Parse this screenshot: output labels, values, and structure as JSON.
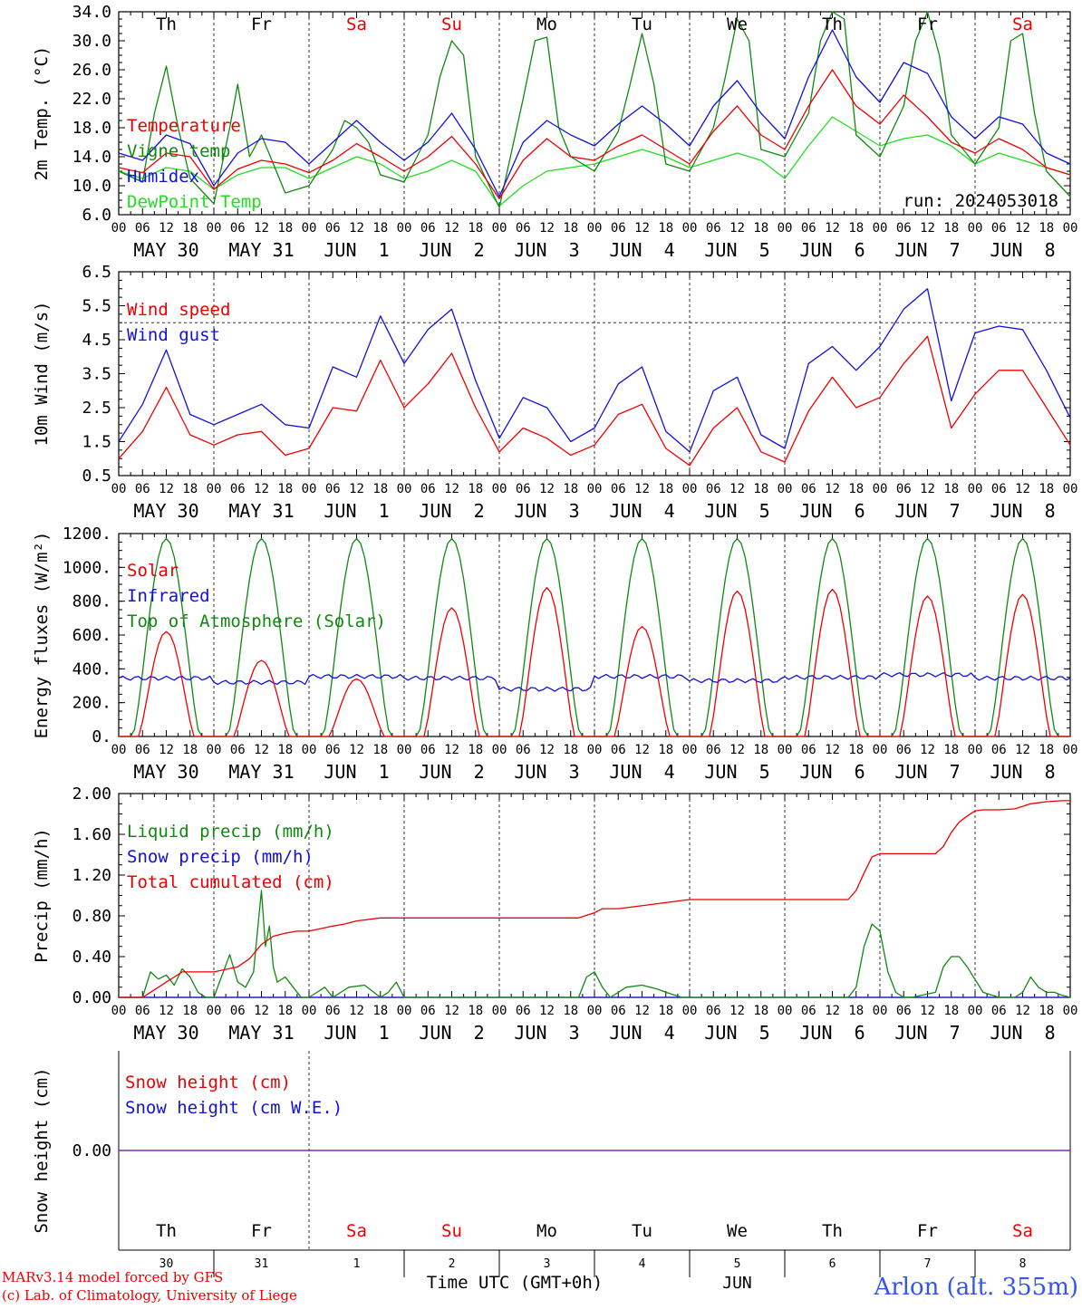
{
  "colors": {
    "red": "#ee0000",
    "green": "#118811",
    "blue": "#1111dd",
    "lightgreen": "#22dd22",
    "purple": "#7733aa",
    "axis": "#000000",
    "grid": "#333333"
  },
  "hour_labels": [
    "00",
    "06",
    "12",
    "18"
  ],
  "end_hour_label": "00",
  "date_labels": [
    "MAY 30",
    "MAY 31",
    "JUN  1",
    "JUN  2",
    "JUN  3",
    "JUN  4",
    "JUN  5",
    "JUN  6",
    "JUN  7",
    "JUN  8"
  ],
  "weekdays": [
    {
      "label": "Th",
      "weekend": false
    },
    {
      "label": "Fr",
      "weekend": false
    },
    {
      "label": "Sa",
      "weekend": true
    },
    {
      "label": "Su",
      "weekend": true
    },
    {
      "label": "Mo",
      "weekend": false
    },
    {
      "label": "Tu",
      "weekend": false
    },
    {
      "label": "We",
      "weekend": false
    },
    {
      "label": "Th",
      "weekend": false
    },
    {
      "label": "Fr",
      "weekend": false
    },
    {
      "label": "Sa",
      "weekend": true
    }
  ],
  "day_numbers": [
    "30",
    "31",
    "1",
    "2",
    "3",
    "4",
    "5",
    "6",
    "7",
    "8"
  ],
  "month_label": "JUN",
  "time_label": "Time UTC (GMT+0h)",
  "station_label": "Arlon (alt. 355m)",
  "credit_line1": "MARv3.14 model forced by GFS",
  "credit_line2": "(c) Lab. of Climatology, University of Liege",
  "chart_data": [
    {
      "id": "temperature",
      "type": "line",
      "ylabel": "2m Temp. (°C)",
      "ylim": [
        6,
        34
      ],
      "yticks": [
        "6.0",
        "10.0",
        "14.0",
        "18.0",
        "22.0",
        "26.0",
        "30.0",
        "34.0"
      ],
      "ytick_values": [
        6,
        10,
        14,
        18,
        22,
        26,
        30,
        34
      ],
      "x_unit": "hours since May 30 00 UTC",
      "annotation": "run: 2024053018",
      "series": [
        {
          "name": "Temperature",
          "color": "red",
          "x": [
            0,
            6,
            12,
            18,
            24,
            30,
            36,
            42,
            48,
            54,
            60,
            66,
            72,
            78,
            84,
            90,
            96,
            102,
            108,
            114,
            120,
            126,
            132,
            138,
            144,
            150,
            156,
            162,
            168,
            174,
            180,
            186,
            192,
            198,
            204,
            210,
            216,
            222,
            228,
            234,
            240
          ],
          "y": [
            12.5,
            11.8,
            14.5,
            14.0,
            9.5,
            12.3,
            13.5,
            13.0,
            11.8,
            13.5,
            15.8,
            14.0,
            12.0,
            14.0,
            16.8,
            13.0,
            8.2,
            13.5,
            16.5,
            14.0,
            13.5,
            15.5,
            17.0,
            15.0,
            13.0,
            17.5,
            21.0,
            17.0,
            15.0,
            21.0,
            26.0,
            21.0,
            18.5,
            22.5,
            19.5,
            16.0,
            14.5,
            16.5,
            15.0,
            12.5,
            11.5
          ]
        },
        {
          "name": "Vigne temp",
          "color": "green",
          "x": [
            0,
            6,
            9,
            12,
            15,
            18,
            24,
            28,
            30,
            33,
            36,
            42,
            48,
            54,
            57,
            60,
            63,
            66,
            72,
            78,
            81,
            84,
            87,
            90,
            96,
            102,
            105,
            108,
            111,
            114,
            120,
            126,
            129,
            132,
            135,
            138,
            144,
            150,
            153,
            156,
            159,
            162,
            168,
            174,
            177,
            180,
            183,
            186,
            192,
            198,
            201,
            204,
            207,
            210,
            216,
            222,
            225,
            228,
            231,
            234,
            240
          ],
          "y": [
            12.0,
            10.5,
            20.0,
            26.5,
            18.0,
            11.0,
            7.5,
            18.0,
            24.0,
            14.0,
            17.0,
            9.0,
            10.0,
            15.0,
            19.0,
            18.0,
            16.0,
            11.5,
            10.5,
            17.0,
            25.0,
            30.0,
            28.0,
            14.0,
            7.0,
            22.0,
            30.0,
            30.5,
            18.0,
            14.0,
            12.0,
            17.5,
            24.0,
            31.0,
            24.0,
            13.0,
            12.0,
            18.0,
            25.0,
            33.0,
            30.0,
            15.0,
            14.0,
            20.0,
            30.0,
            36.0,
            33.0,
            17.0,
            14.0,
            21.0,
            30.0,
            34.0,
            28.0,
            17.0,
            13.0,
            18.0,
            30.0,
            31.0,
            20.0,
            12.0,
            8.5
          ]
        },
        {
          "name": "Humidex",
          "color": "blue",
          "x": [
            0,
            6,
            12,
            18,
            24,
            30,
            36,
            42,
            48,
            54,
            60,
            66,
            72,
            78,
            84,
            90,
            96,
            102,
            108,
            114,
            120,
            126,
            132,
            138,
            144,
            150,
            156,
            162,
            168,
            174,
            180,
            186,
            192,
            198,
            204,
            210,
            216,
            222,
            228,
            234,
            240
          ],
          "y": [
            14.5,
            13.5,
            17.0,
            15.8,
            10.0,
            14.5,
            16.5,
            16.0,
            13.0,
            16.0,
            19.0,
            16.0,
            13.5,
            16.0,
            20.0,
            15.0,
            8.5,
            16.0,
            19.0,
            17.0,
            15.5,
            18.5,
            21.0,
            18.5,
            15.5,
            21.0,
            24.5,
            20.0,
            16.5,
            25.0,
            31.5,
            25.0,
            21.5,
            27.0,
            25.5,
            19.5,
            16.5,
            19.5,
            18.5,
            14.5,
            13.0
          ]
        },
        {
          "name": "DewPoint Temp",
          "color": "lightgreen",
          "x": [
            0,
            6,
            12,
            18,
            24,
            30,
            36,
            42,
            48,
            54,
            60,
            66,
            72,
            78,
            84,
            90,
            96,
            102,
            108,
            114,
            120,
            126,
            132,
            138,
            144,
            150,
            156,
            162,
            168,
            174,
            180,
            186,
            192,
            198,
            204,
            210,
            216,
            222,
            228,
            234,
            240
          ],
          "y": [
            12.0,
            11.0,
            12.5,
            12.0,
            9.5,
            11.5,
            12.5,
            12.5,
            11.0,
            12.5,
            14.0,
            13.0,
            11.0,
            12.0,
            13.5,
            12.0,
            7.2,
            10.0,
            12.0,
            12.5,
            13.0,
            14.0,
            15.0,
            14.0,
            12.5,
            13.5,
            14.5,
            13.5,
            11.0,
            15.5,
            19.5,
            17.5,
            15.5,
            16.5,
            17.0,
            15.5,
            13.0,
            14.5,
            13.5,
            12.5,
            11.5
          ]
        }
      ]
    },
    {
      "id": "wind",
      "type": "line",
      "ylabel": "10m Wind (m/s)",
      "ylim": [
        0.5,
        6.5
      ],
      "yticks": [
        "0.5",
        "1.5",
        "2.5",
        "3.5",
        "4.5",
        "5.5",
        "6.5"
      ],
      "ytick_values": [
        0.5,
        1.5,
        2.5,
        3.5,
        4.5,
        5.5,
        6.5
      ],
      "ref_line": 5.0,
      "series": [
        {
          "name": "Wind speed",
          "color": "red",
          "x": [
            0,
            6,
            12,
            18,
            24,
            30,
            36,
            42,
            48,
            54,
            60,
            66,
            72,
            78,
            84,
            90,
            96,
            102,
            108,
            114,
            120,
            126,
            132,
            138,
            144,
            150,
            156,
            162,
            168,
            174,
            180,
            186,
            192,
            198,
            204,
            210,
            216,
            222,
            228,
            234,
            240
          ],
          "y": [
            1.0,
            1.8,
            3.1,
            1.7,
            1.4,
            1.7,
            1.8,
            1.1,
            1.3,
            2.5,
            2.4,
            3.9,
            2.5,
            3.2,
            4.1,
            2.5,
            1.2,
            1.9,
            1.6,
            1.1,
            1.4,
            2.3,
            2.6,
            1.3,
            0.8,
            1.9,
            2.5,
            1.2,
            0.9,
            2.4,
            3.4,
            2.5,
            2.8,
            3.8,
            4.6,
            1.9,
            2.9,
            3.6,
            3.6,
            2.5,
            1.4
          ]
        },
        {
          "name": "Wind gust",
          "color": "blue",
          "x": [
            0,
            6,
            12,
            18,
            24,
            30,
            36,
            42,
            48,
            54,
            60,
            66,
            72,
            78,
            84,
            90,
            96,
            102,
            108,
            114,
            120,
            126,
            132,
            138,
            144,
            150,
            156,
            162,
            168,
            174,
            180,
            186,
            192,
            198,
            204,
            210,
            216,
            222,
            228,
            234,
            240
          ],
          "y": [
            1.5,
            2.6,
            4.2,
            2.3,
            2.0,
            2.3,
            2.6,
            2.0,
            1.9,
            3.7,
            3.4,
            5.2,
            3.8,
            4.8,
            5.4,
            3.3,
            1.6,
            2.8,
            2.5,
            1.5,
            1.9,
            3.2,
            3.7,
            1.8,
            1.2,
            3.0,
            3.4,
            1.7,
            1.3,
            3.8,
            4.3,
            3.6,
            4.3,
            5.4,
            6.0,
            2.7,
            4.7,
            4.9,
            4.8,
            3.6,
            2.2
          ]
        }
      ]
    },
    {
      "id": "energy",
      "type": "line",
      "ylabel": "Energy fluxes (W/m²)",
      "ylim": [
        0,
        1200
      ],
      "yticks": [
        "0.",
        "200.",
        "400.",
        "600.",
        "800.",
        "1000.",
        "1200."
      ],
      "ytick_values": [
        0,
        200,
        400,
        600,
        800,
        1000,
        1200
      ],
      "series": [
        {
          "name": "Solar",
          "color": "red",
          "daily_peak": [
            620,
            450,
            340,
            760,
            880,
            650,
            860,
            870,
            830,
            840
          ]
        },
        {
          "name": "Infrared",
          "color": "blue",
          "daily_mean": [
            345,
            320,
            355,
            345,
            280,
            355,
            330,
            350,
            365,
            345
          ]
        },
        {
          "name": "Top of Atmosphere (Solar)",
          "color": "green",
          "daily_peak": [
            1170,
            1170,
            1170,
            1170,
            1170,
            1170,
            1170,
            1170,
            1170,
            1170
          ]
        }
      ]
    },
    {
      "id": "precip",
      "type": "line",
      "ylabel": "Precip (mm/h)",
      "ylim": [
        0,
        2
      ],
      "yticks": [
        "0.00",
        "0.40",
        "0.80",
        "1.20",
        "1.60",
        "2.00"
      ],
      "ytick_values": [
        0,
        0.4,
        0.8,
        1.2,
        1.6,
        2.0
      ],
      "series": [
        {
          "name": "Liquid precip (mm/h)",
          "color": "green",
          "x": [
            0,
            6,
            8,
            10,
            12,
            14,
            16,
            18,
            20,
            22,
            24,
            28,
            30,
            32,
            34,
            36,
            37,
            38,
            39,
            40,
            42,
            44,
            46,
            48,
            52,
            54,
            58,
            62,
            66,
            68,
            70,
            72,
            96,
            116,
            118,
            120,
            122,
            124,
            126,
            128,
            132,
            136,
            138,
            142,
            144,
            168,
            184,
            186,
            188,
            190,
            192,
            194,
            196,
            198,
            200,
            206,
            208,
            210,
            212,
            214,
            218,
            222,
            226,
            228,
            230,
            232,
            234,
            236,
            238,
            240
          ],
          "y": [
            0,
            0,
            0.25,
            0.18,
            0.22,
            0.12,
            0.28,
            0.2,
            0.05,
            0,
            0,
            0.42,
            0.15,
            0.1,
            0.25,
            1.05,
            0.5,
            0.7,
            0.3,
            0.15,
            0.2,
            0.1,
            0,
            0,
            0.1,
            0,
            0.1,
            0.12,
            0,
            0.05,
            0.15,
            0,
            0,
            0,
            0.2,
            0.25,
            0.1,
            0,
            0.05,
            0.1,
            0.12,
            0.08,
            0.05,
            0,
            0,
            0,
            0,
            0.1,
            0.5,
            0.72,
            0.65,
            0.25,
            0.05,
            0,
            0,
            0.05,
            0.3,
            0.4,
            0.4,
            0.3,
            0.05,
            0,
            0,
            0.05,
            0.2,
            0.1,
            0.05,
            0.05,
            0.02,
            0
          ]
        },
        {
          "name": "Snow precip (mm/h)",
          "color": "blue",
          "x": [
            0,
            240
          ],
          "y": [
            0,
            0
          ]
        },
        {
          "name": "Total cumulated (cm)",
          "color": "red",
          "x": [
            0,
            6,
            8,
            10,
            12,
            14,
            16,
            18,
            20,
            22,
            24,
            30,
            33,
            36,
            39,
            42,
            45,
            48,
            54,
            57,
            60,
            66,
            72,
            96,
            116,
            120,
            122,
            126,
            144,
            168,
            180,
            184,
            186,
            188,
            190,
            192,
            198,
            206,
            208,
            210,
            212,
            214,
            216,
            218,
            220,
            222,
            226,
            230,
            234,
            238,
            240
          ],
          "y": [
            0,
            0,
            0.05,
            0.1,
            0.15,
            0.2,
            0.25,
            0.25,
            0.25,
            0.25,
            0.25,
            0.3,
            0.38,
            0.52,
            0.6,
            0.63,
            0.65,
            0.65,
            0.7,
            0.72,
            0.75,
            0.78,
            0.78,
            0.78,
            0.78,
            0.83,
            0.87,
            0.87,
            0.96,
            0.96,
            0.96,
            0.96,
            1.05,
            1.22,
            1.38,
            1.41,
            1.41,
            1.41,
            1.48,
            1.62,
            1.72,
            1.78,
            1.83,
            1.84,
            1.84,
            1.84,
            1.85,
            1.9,
            1.92,
            1.93,
            1.93
          ]
        }
      ]
    },
    {
      "id": "snow",
      "type": "line",
      "ylabel": "Snow height (cm)",
      "yticks": [
        "0.00"
      ],
      "series": [
        {
          "name": "Snow height (cm)",
          "color": "red",
          "x": [
            0,
            240
          ],
          "y": [
            0,
            0
          ]
        },
        {
          "name": "Snow height (cm W.E.)",
          "color": "blue",
          "x": [
            0,
            240
          ],
          "y": [
            0,
            0
          ]
        }
      ]
    }
  ]
}
